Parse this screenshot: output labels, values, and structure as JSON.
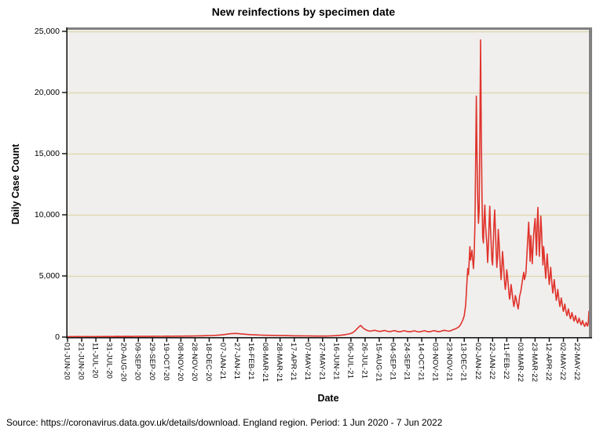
{
  "chart_data": {
    "type": "line",
    "title": "New reinfections by specimen date",
    "xlabel": "Date",
    "ylabel": "Daily Case Count",
    "legend": "none",
    "grid": "horizontal",
    "x_axis": {
      "unit": "days since 1 Jun 2020",
      "domain_days": [
        0,
        736
      ],
      "tick_interval_days": 20,
      "tick_labels": [
        "01-JUN-20",
        "21-JUN-20",
        "11-JUL-20",
        "31-JUL-20",
        "20-AUG-20",
        "09-SEP-20",
        "29-SEP-20",
        "19-OCT-20",
        "08-NOV-20",
        "28-NOV-20",
        "18-DEC-20",
        "07-JAN-21",
        "27-JAN-21",
        "16-FEB-21",
        "08-MAR-21",
        "28-MAR-21",
        "17-APR-21",
        "07-MAY-21",
        "27-MAY-21",
        "16-JUN-21",
        "06-JUL-21",
        "26-JUL-21",
        "15-AUG-21",
        "04-SEP-21",
        "24-SEP-21",
        "14-OCT-21",
        "03-NOV-21",
        "23-NOV-21",
        "13-DEC-21",
        "02-JAN-22",
        "22-JAN-22",
        "11-FEB-22",
        "03-MAR-22",
        "23-MAR-22",
        "12-APR-22",
        "02-MAY-22",
        "22-MAY-22"
      ]
    },
    "y_axis": {
      "ylim": [
        0,
        25000
      ],
      "tick_interval": 5000,
      "tick_labels": [
        "0",
        "5,000",
        "10,000",
        "15,000",
        "20,000",
        "25,000"
      ]
    },
    "colors": {
      "plot_background": "#f0efed",
      "gridline": "#ddd9b4",
      "frame_gray": "#818181",
      "axis_black": "#1a1a1a"
    },
    "series": [
      {
        "name": "New reinfections",
        "color": "#e0332c",
        "points": [
          [
            0,
            40
          ],
          [
            7,
            38
          ],
          [
            14,
            42
          ],
          [
            21,
            36
          ],
          [
            28,
            45
          ],
          [
            35,
            40
          ],
          [
            42,
            48
          ],
          [
            49,
            44
          ],
          [
            56,
            52
          ],
          [
            63,
            47
          ],
          [
            70,
            55
          ],
          [
            77,
            50
          ],
          [
            84,
            58
          ],
          [
            91,
            54
          ],
          [
            98,
            62
          ],
          [
            105,
            58
          ],
          [
            112,
            66
          ],
          [
            119,
            60
          ],
          [
            126,
            70
          ],
          [
            133,
            64
          ],
          [
            140,
            74
          ],
          [
            147,
            70
          ],
          [
            154,
            80
          ],
          [
            161,
            76
          ],
          [
            168,
            86
          ],
          [
            175,
            82
          ],
          [
            182,
            95
          ],
          [
            189,
            100
          ],
          [
            196,
            115
          ],
          [
            203,
            130
          ],
          [
            210,
            150
          ],
          [
            217,
            180
          ],
          [
            224,
            230
          ],
          [
            231,
            280
          ],
          [
            238,
            300
          ],
          [
            245,
            265
          ],
          [
            252,
            230
          ],
          [
            259,
            200
          ],
          [
            266,
            180
          ],
          [
            273,
            160
          ],
          [
            280,
            150
          ],
          [
            287,
            140
          ],
          [
            294,
            135
          ],
          [
            301,
            125
          ],
          [
            308,
            120
          ],
          [
            315,
            112
          ],
          [
            322,
            105
          ],
          [
            329,
            100
          ],
          [
            336,
            96
          ],
          [
            343,
            90
          ],
          [
            350,
            86
          ],
          [
            357,
            82
          ],
          [
            364,
            85
          ],
          [
            371,
            95
          ],
          [
            378,
            115
          ],
          [
            385,
            150
          ],
          [
            392,
            200
          ],
          [
            399,
            280
          ],
          [
            403,
            380
          ],
          [
            406,
            520
          ],
          [
            409,
            700
          ],
          [
            412,
            880
          ],
          [
            414,
            950
          ],
          [
            416,
            820
          ],
          [
            418,
            700
          ],
          [
            421,
            600
          ],
          [
            424,
            520
          ],
          [
            427,
            480
          ],
          [
            430,
            520
          ],
          [
            434,
            560
          ],
          [
            437,
            500
          ],
          [
            441,
            460
          ],
          [
            444,
            500
          ],
          [
            448,
            540
          ],
          [
            451,
            480
          ],
          [
            455,
            440
          ],
          [
            458,
            490
          ],
          [
            462,
            530
          ],
          [
            465,
            470
          ],
          [
            469,
            430
          ],
          [
            472,
            480
          ],
          [
            476,
            520
          ],
          [
            479,
            460
          ],
          [
            483,
            430
          ],
          [
            486,
            470
          ],
          [
            490,
            510
          ],
          [
            493,
            450
          ],
          [
            497,
            420
          ],
          [
            500,
            470
          ],
          [
            504,
            520
          ],
          [
            507,
            460
          ],
          [
            511,
            430
          ],
          [
            514,
            480
          ],
          [
            518,
            530
          ],
          [
            521,
            470
          ],
          [
            525,
            440
          ],
          [
            528,
            500
          ],
          [
            532,
            560
          ],
          [
            535,
            510
          ],
          [
            539,
            480
          ],
          [
            542,
            550
          ],
          [
            546,
            640
          ],
          [
            549,
            720
          ],
          [
            552,
            820
          ],
          [
            554,
            950
          ],
          [
            556,
            1150
          ],
          [
            558,
            1400
          ],
          [
            560,
            1750
          ],
          [
            562,
            2600
          ],
          [
            563,
            3600
          ],
          [
            564,
            4700
          ],
          [
            565,
            5600
          ],
          [
            566,
            5100
          ],
          [
            567,
            6200
          ],
          [
            568,
            7400
          ],
          [
            569,
            6300
          ],
          [
            570,
            6700
          ],
          [
            571,
            7100
          ],
          [
            572,
            6300
          ],
          [
            573,
            5600
          ],
          [
            574,
            6600
          ],
          [
            575,
            9200
          ],
          [
            576,
            14200
          ],
          [
            577,
            19700
          ],
          [
            578,
            14800
          ],
          [
            579,
            11200
          ],
          [
            580,
            9300
          ],
          [
            581,
            10400
          ],
          [
            582,
            16500
          ],
          [
            583,
            24300
          ],
          [
            584,
            16800
          ],
          [
            585,
            11600
          ],
          [
            586,
            8200
          ],
          [
            587,
            7700
          ],
          [
            588,
            9600
          ],
          [
            589,
            10800
          ],
          [
            590,
            9100
          ],
          [
            591,
            8300
          ],
          [
            592,
            7500
          ],
          [
            593,
            6100
          ],
          [
            594,
            7300
          ],
          [
            595,
            9200
          ],
          [
            596,
            10700
          ],
          [
            597,
            8900
          ],
          [
            598,
            7600
          ],
          [
            599,
            6300
          ],
          [
            600,
            5900
          ],
          [
            601,
            7700
          ],
          [
            602,
            9300
          ],
          [
            603,
            10400
          ],
          [
            604,
            8700
          ],
          [
            605,
            7100
          ],
          [
            606,
            5700
          ],
          [
            607,
            6500
          ],
          [
            608,
            8800
          ],
          [
            609,
            7900
          ],
          [
            610,
            6700
          ],
          [
            611,
            5600
          ],
          [
            612,
            4700
          ],
          [
            613,
            5500
          ],
          [
            614,
            7000
          ],
          [
            615,
            6300
          ],
          [
            616,
            5400
          ],
          [
            617,
            4500
          ],
          [
            618,
            3900
          ],
          [
            619,
            4400
          ],
          [
            620,
            5500
          ],
          [
            621,
            5000
          ],
          [
            622,
            4300
          ],
          [
            623,
            3600
          ],
          [
            624,
            3100
          ],
          [
            625,
            3500
          ],
          [
            626,
            4300
          ],
          [
            627,
            3900
          ],
          [
            628,
            3400
          ],
          [
            629,
            2900
          ],
          [
            630,
            2500
          ],
          [
            631,
            2800
          ],
          [
            632,
            3400
          ],
          [
            633,
            3200
          ],
          [
            634,
            2900
          ],
          [
            635,
            2600
          ],
          [
            636,
            2300
          ],
          [
            637,
            2700
          ],
          [
            638,
            3300
          ],
          [
            640,
            3800
          ],
          [
            642,
            4600
          ],
          [
            644,
            5300
          ],
          [
            645,
            4700
          ],
          [
            647,
            5200
          ],
          [
            649,
            7300
          ],
          [
            651,
            9400
          ],
          [
            652,
            7800
          ],
          [
            653,
            6200
          ],
          [
            654,
            8300
          ],
          [
            655,
            7200
          ],
          [
            656,
            6000
          ],
          [
            658,
            8400
          ],
          [
            660,
            9700
          ],
          [
            661,
            8200
          ],
          [
            662,
            6700
          ],
          [
            663,
            9200
          ],
          [
            664,
            10600
          ],
          [
            665,
            8600
          ],
          [
            666,
            6600
          ],
          [
            667,
            8100
          ],
          [
            668,
            9900
          ],
          [
            669,
            8800
          ],
          [
            670,
            7200
          ],
          [
            671,
            5900
          ],
          [
            672,
            7400
          ],
          [
            673,
            6600
          ],
          [
            674,
            5600
          ],
          [
            675,
            4800
          ],
          [
            676,
            5800
          ],
          [
            677,
            6800
          ],
          [
            678,
            5900
          ],
          [
            679,
            5000
          ],
          [
            680,
            4300
          ],
          [
            681,
            5000
          ],
          [
            682,
            5700
          ],
          [
            683,
            4900
          ],
          [
            684,
            4200
          ],
          [
            685,
            3600
          ],
          [
            686,
            4100
          ],
          [
            687,
            4700
          ],
          [
            688,
            4100
          ],
          [
            689,
            3500
          ],
          [
            690,
            3000
          ],
          [
            691,
            3400
          ],
          [
            692,
            3900
          ],
          [
            693,
            3400
          ],
          [
            694,
            2900
          ],
          [
            695,
            2500
          ],
          [
            696,
            2800
          ],
          [
            697,
            3200
          ],
          [
            698,
            2800
          ],
          [
            699,
            2400
          ],
          [
            700,
            2100
          ],
          [
            701,
            2400
          ],
          [
            702,
            2700
          ],
          [
            703,
            2300
          ],
          [
            704,
            2000
          ],
          [
            705,
            1750
          ],
          [
            706,
            2000
          ],
          [
            707,
            2300
          ],
          [
            708,
            2000
          ],
          [
            709,
            1700
          ],
          [
            710,
            1500
          ],
          [
            711,
            1700
          ],
          [
            712,
            2000
          ],
          [
            713,
            1750
          ],
          [
            714,
            1500
          ],
          [
            715,
            1300
          ],
          [
            716,
            1500
          ],
          [
            717,
            1750
          ],
          [
            718,
            1500
          ],
          [
            719,
            1300
          ],
          [
            720,
            1150
          ],
          [
            721,
            1300
          ],
          [
            722,
            1550
          ],
          [
            723,
            1350
          ],
          [
            724,
            1150
          ],
          [
            725,
            1000
          ],
          [
            726,
            1150
          ],
          [
            727,
            1350
          ],
          [
            728,
            1150
          ],
          [
            729,
            980
          ],
          [
            730,
            880
          ],
          [
            731,
            1000
          ],
          [
            732,
            1200
          ],
          [
            733,
            1050
          ],
          [
            734,
            900
          ],
          [
            735,
            1100
          ],
          [
            736,
            2100
          ]
        ]
      }
    ]
  },
  "footer": {
    "source": "Source: https://coronavirus.data.gov.uk/details/download. England region. Period: 1 Jun 2020 - 7 Jun 2022"
  }
}
